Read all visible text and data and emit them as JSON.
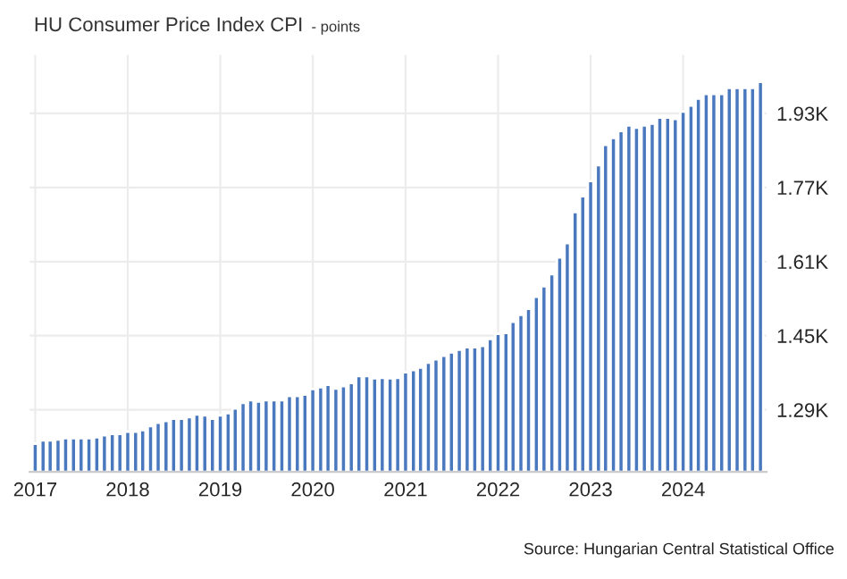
{
  "chart_data": {
    "type": "bar",
    "title": "HU Consumer Price Index CPI",
    "subtitle": "- points",
    "color": "#4a78be",
    "x": [
      "2017-01",
      "2017-02",
      "2017-03",
      "2017-04",
      "2017-05",
      "2017-06",
      "2017-07",
      "2017-08",
      "2017-09",
      "2017-10",
      "2017-11",
      "2017-12",
      "2018-01",
      "2018-02",
      "2018-03",
      "2018-04",
      "2018-05",
      "2018-06",
      "2018-07",
      "2018-08",
      "2018-09",
      "2018-10",
      "2018-11",
      "2018-12",
      "2019-01",
      "2019-02",
      "2019-03",
      "2019-04",
      "2019-05",
      "2019-06",
      "2019-07",
      "2019-08",
      "2019-09",
      "2019-10",
      "2019-11",
      "2019-12",
      "2020-01",
      "2020-02",
      "2020-03",
      "2020-04",
      "2020-05",
      "2020-06",
      "2020-07",
      "2020-08",
      "2020-09",
      "2020-10",
      "2020-11",
      "2020-12",
      "2021-01",
      "2021-02",
      "2021-03",
      "2021-04",
      "2021-05",
      "2021-06",
      "2021-07",
      "2021-08",
      "2021-09",
      "2021-10",
      "2021-11",
      "2021-12",
      "2022-01",
      "2022-02",
      "2022-03",
      "2022-04",
      "2022-05",
      "2022-06",
      "2022-07",
      "2022-08",
      "2022-09",
      "2022-10",
      "2022-11",
      "2022-12",
      "2023-01",
      "2023-02",
      "2023-03",
      "2023-04",
      "2023-05",
      "2023-06",
      "2023-07",
      "2023-08",
      "2023-09",
      "2023-10",
      "2023-11",
      "2023-12",
      "2024-01",
      "2024-02",
      "2024-03",
      "2024-04",
      "2024-05",
      "2024-06",
      "2024-07",
      "2024-08",
      "2024-09",
      "2024-10",
      "2024-11"
    ],
    "values": [
      1217,
      1224,
      1224,
      1226,
      1229,
      1229,
      1229,
      1229,
      1231,
      1235,
      1238,
      1238,
      1243,
      1243,
      1246,
      1255,
      1262,
      1266,
      1271,
      1271,
      1274,
      1280,
      1278,
      1271,
      1278,
      1283,
      1293,
      1305,
      1311,
      1308,
      1311,
      1311,
      1311,
      1320,
      1320,
      1323,
      1335,
      1339,
      1344,
      1336,
      1341,
      1348,
      1363,
      1363,
      1358,
      1359,
      1358,
      1359,
      1371,
      1376,
      1381,
      1392,
      1399,
      1407,
      1414,
      1420,
      1425,
      1425,
      1428,
      1443,
      1454,
      1456,
      1480,
      1495,
      1508,
      1534,
      1557,
      1583,
      1619,
      1650,
      1717,
      1751,
      1784,
      1818,
      1862,
      1877,
      1892,
      1904,
      1899,
      1904,
      1908,
      1921,
      1921,
      1918,
      1934,
      1947,
      1962,
      1972,
      1972,
      1972,
      1985,
      1985,
      1985,
      1985,
      1998
    ],
    "xlim": [
      "2016-12-10",
      "2024-11-25"
    ],
    "xticks": [
      {
        "value": "2017-01-01",
        "label": "2017"
      },
      {
        "value": "2018-01-01",
        "label": "2018"
      },
      {
        "value": "2019-01-01",
        "label": "2019"
      },
      {
        "value": "2020-01-01",
        "label": "2020"
      },
      {
        "value": "2021-01-01",
        "label": "2021"
      },
      {
        "value": "2022-01-01",
        "label": "2022"
      },
      {
        "value": "2023-01-01",
        "label": "2023"
      },
      {
        "value": "2024-01-01",
        "label": "2024"
      }
    ],
    "ylim": [
      1156,
      2056
    ],
    "yticks": [
      {
        "value": 1290,
        "label": "1.29K"
      },
      {
        "value": 1450,
        "label": "1.45K"
      },
      {
        "value": 1610,
        "label": "1.61K"
      },
      {
        "value": 1770,
        "label": "1.77K"
      },
      {
        "value": 1930,
        "label": "1.93K"
      }
    ],
    "grid": true,
    "annotations": [
      "Source: Hungarian Central Statistical Office"
    ]
  }
}
